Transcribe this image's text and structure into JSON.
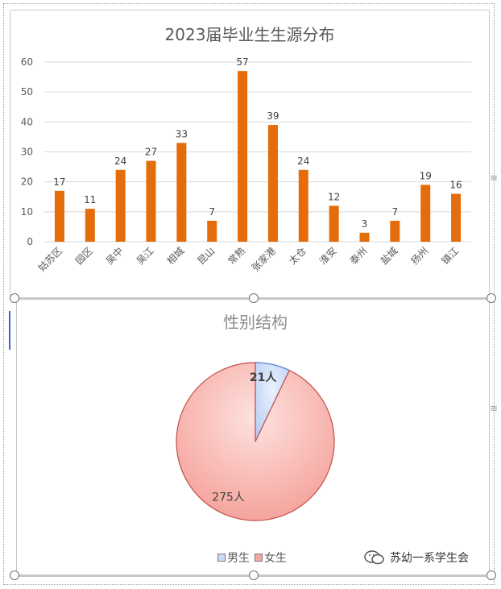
{
  "chart_data": [
    {
      "type": "bar",
      "title": "2023届毕业生生源分布",
      "categories": [
        "姑苏区",
        "园区",
        "吴中",
        "吴江",
        "相城",
        "昆山",
        "常熟",
        "张家港",
        "太仓",
        "淮安",
        "泰州",
        "盐城",
        "扬州",
        "镇江"
      ],
      "values": [
        17,
        11,
        24,
        27,
        33,
        7,
        57,
        39,
        24,
        12,
        3,
        7,
        19,
        16
      ],
      "ylim": [
        0,
        60
      ],
      "yticks": [
        0,
        10,
        20,
        30,
        40,
        50,
        60
      ],
      "xlabel": "",
      "ylabel": "",
      "grid": true,
      "bar_color": "#e46c0a"
    },
    {
      "type": "pie",
      "title": "性别结构",
      "labels": [
        "男生",
        "女生"
      ],
      "values": [
        21,
        275
      ],
      "data_labels": [
        "21人",
        "275人"
      ],
      "colors": [
        "#c6d9f7",
        "#f4a9a4"
      ],
      "legend_position": "bottom"
    }
  ],
  "watermark": "苏幼一系学生会",
  "side_marks": [
    "≋",
    "≋"
  ]
}
